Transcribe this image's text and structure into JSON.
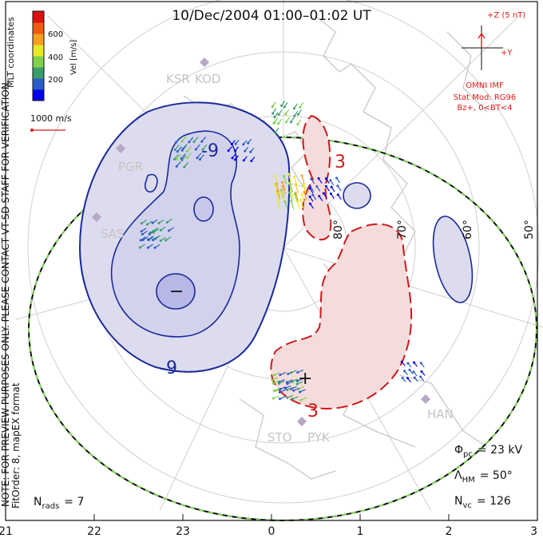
{
  "title": "10/Dec/2004 01:00–01:02 UT",
  "coord_label": "MLT coordinates",
  "colorbar": {
    "label": "Vel [m/s]",
    "ticks": [
      "600",
      "400",
      "200"
    ],
    "colors": [
      "#0000ee",
      "#2a5cc8",
      "#3a9e6a",
      "#7fd14a",
      "#e8e82a",
      "#f5a020",
      "#ee5a10",
      "#dd1010"
    ]
  },
  "reference_vector": "1000 m/s",
  "imf": {
    "z_label": "+Z (5 nT)",
    "y_label": "+Y",
    "source": "OMNI IMF",
    "model": "Stat Mod: RG96",
    "conditions": "Bz+, 0<BT<4",
    "color": "#dd1a1a"
  },
  "watermark": "NOTE: FOR PREVIEW PURPOSES ONLY. PLEASE CONTACT VT-SD STAFF FOR VERIFICATION.",
  "fit_order": "FitOrder: 8, mapEX format",
  "stats": {
    "nrads_sym": "N",
    "nrads_sub": "rads",
    "nrads_val": "= 7",
    "phi_sym": "Φ",
    "phi_sub": "pc",
    "phi_val": "= 23 kV",
    "lambda_sym": "Λ",
    "lambda_sub": "HM",
    "lambda_val": "= 50°",
    "nvc_sym": "N",
    "nvc_sub": "vc",
    "nvc_val": "= 126"
  },
  "mlt_axis": [
    "21",
    "22",
    "23",
    "0",
    "1",
    "2",
    "3"
  ],
  "lat_labels": [
    "80°",
    "70°",
    "60°",
    "50°"
  ],
  "contour_labels": [
    "-9",
    "-9",
    "3",
    "3",
    "−",
    "+"
  ],
  "stations": [
    "KSR",
    "KOD",
    "PGR",
    "SAS",
    "STO",
    "PYK",
    "HAN"
  ],
  "colors": {
    "negative_line": "#1a2a9a",
    "negative_fill": "#dcdcee",
    "negative_core": "#b8b8e6",
    "positive_line": "#cc1a1a",
    "positive_fill": "#f5dcdc",
    "hm_boundary": "#7ed957"
  }
}
